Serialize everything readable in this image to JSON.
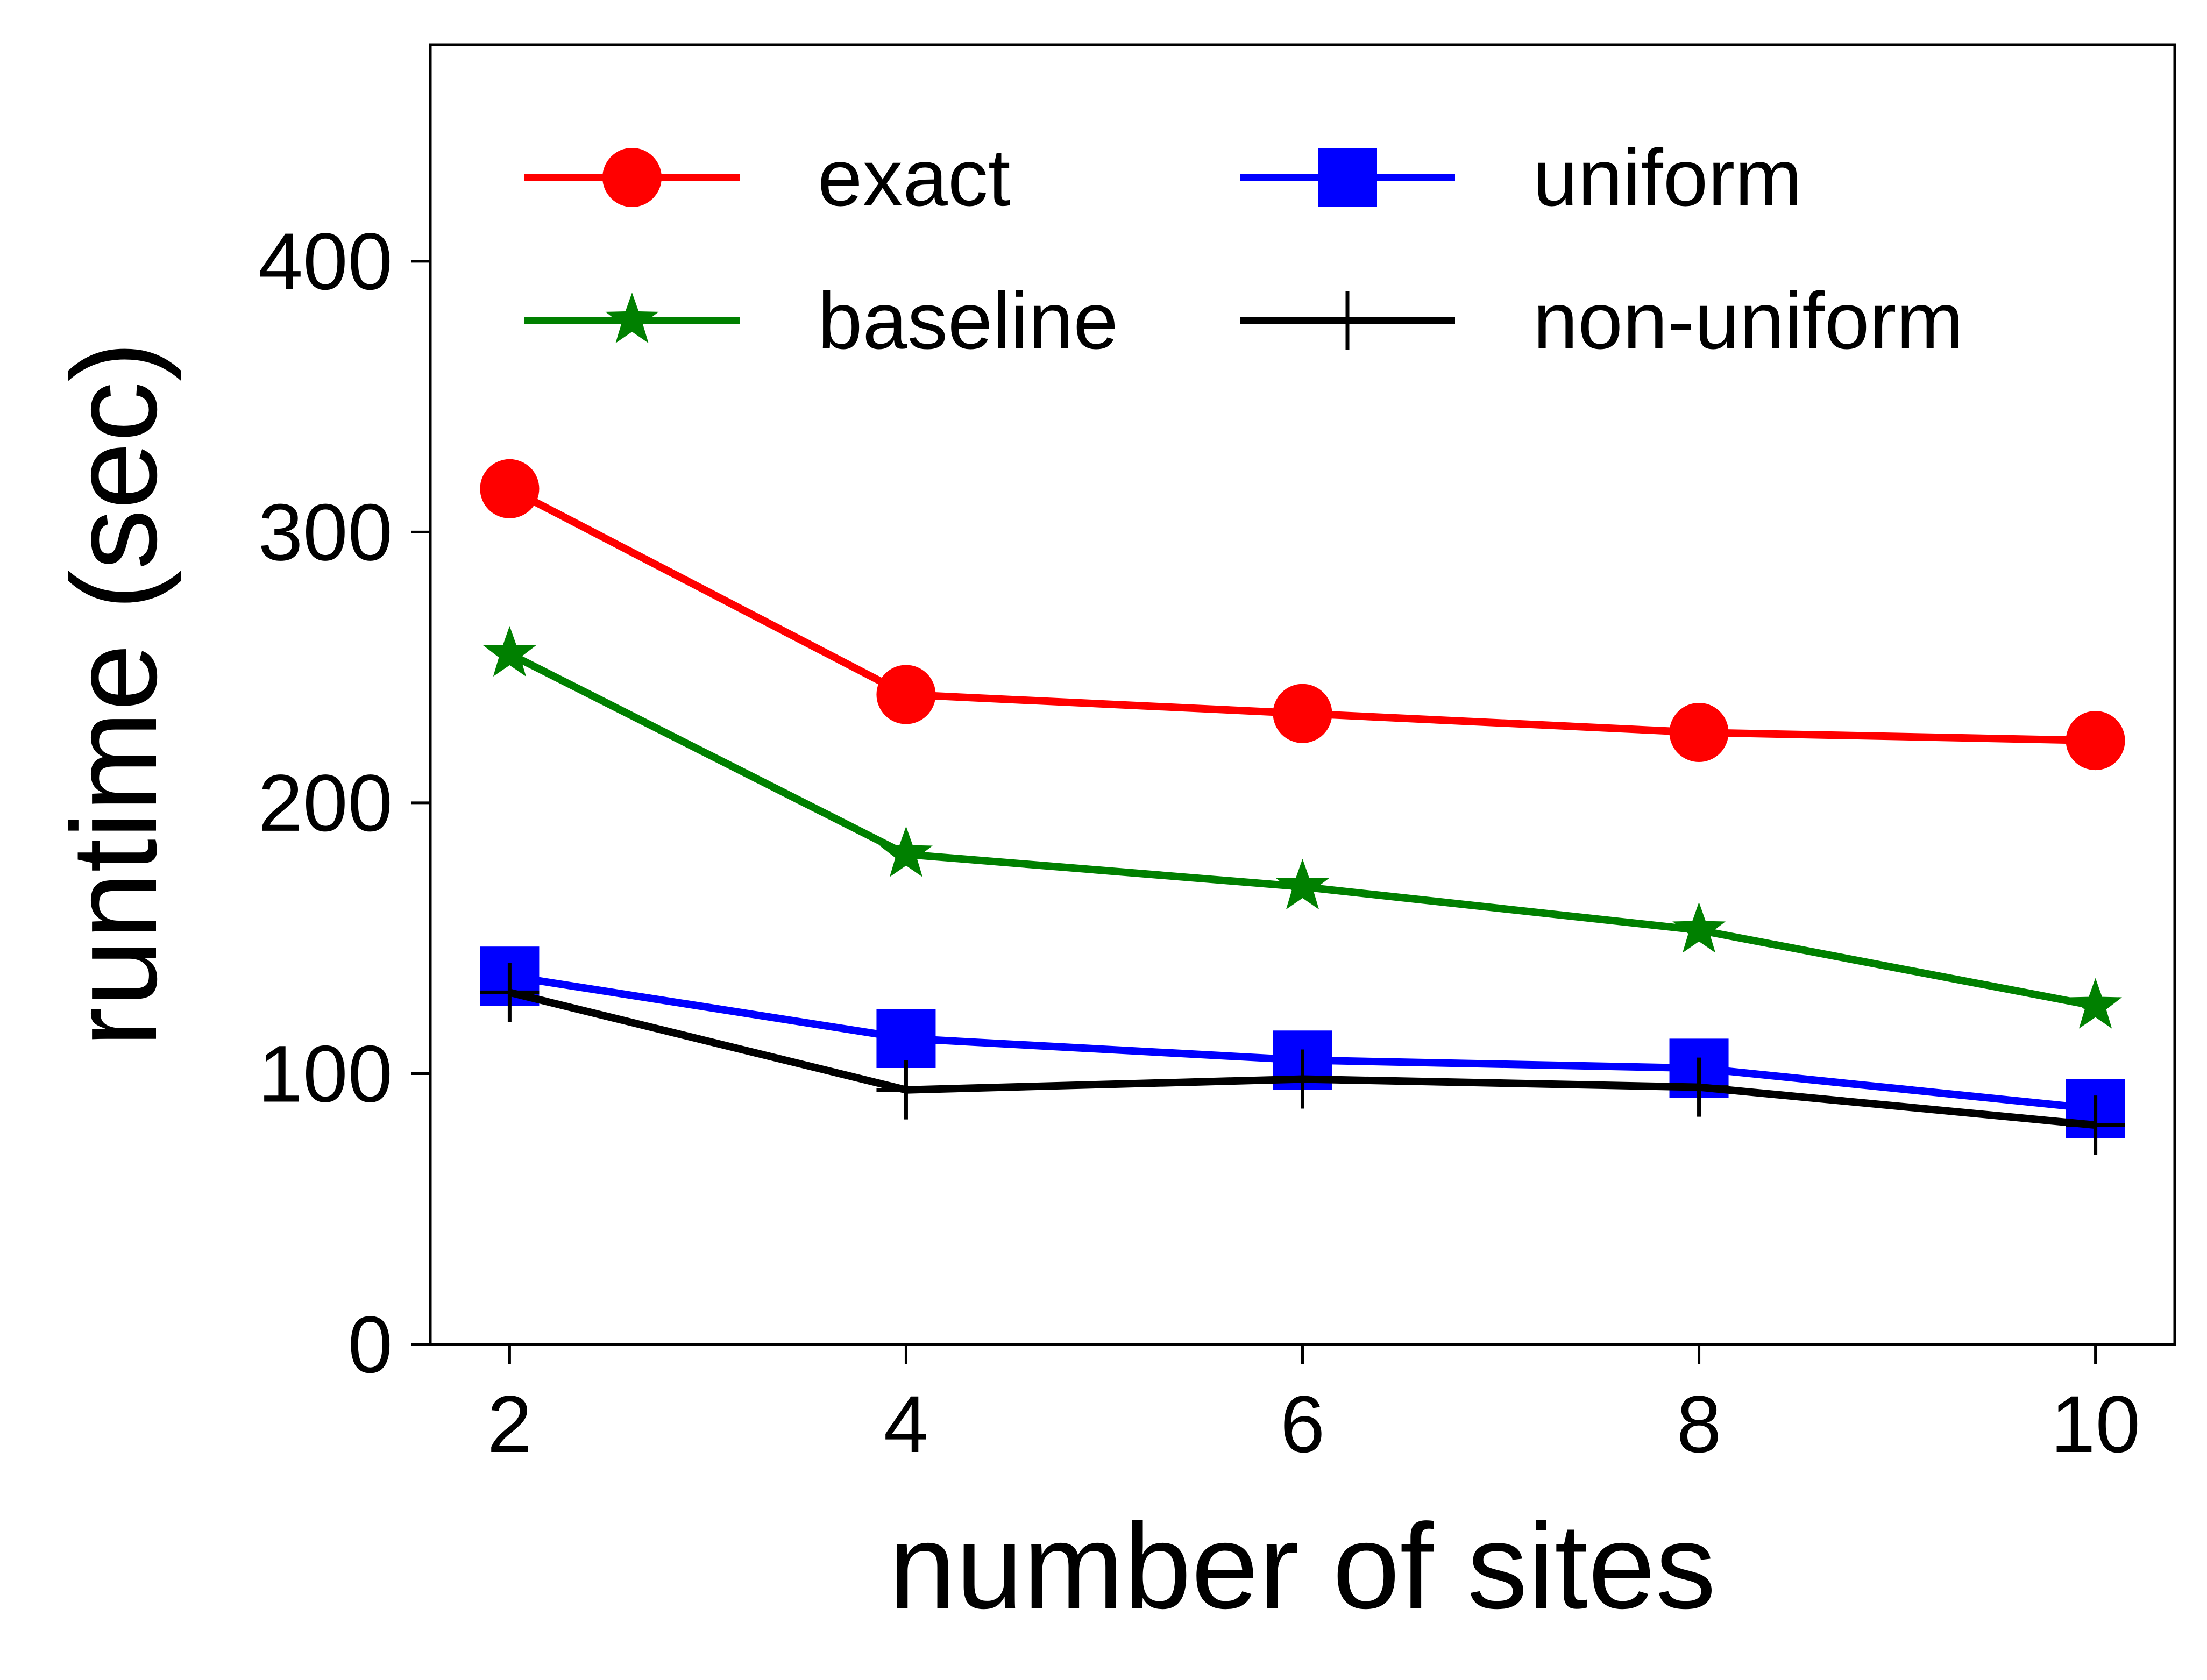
{
  "chart_data": {
    "type": "line",
    "xlabel": "number of sites",
    "ylabel": "runtime (sec)",
    "x": [
      2,
      4,
      6,
      8,
      10
    ],
    "xlim": [
      1.6,
      10.4
    ],
    "ylim": [
      0,
      480
    ],
    "xticks": [
      "2",
      "4",
      "6",
      "8",
      "10"
    ],
    "yticks": [
      "0",
      "100",
      "200",
      "300",
      "400"
    ],
    "grid": false,
    "legend_position": "top",
    "series": [
      {
        "name": "exact",
        "color": "#ff0000",
        "marker": "circle",
        "values": [
          316,
          240,
          233,
          226,
          223
        ]
      },
      {
        "name": "baseline",
        "color": "#008000",
        "marker": "star",
        "values": [
          255,
          181,
          169,
          153,
          125
        ]
      },
      {
        "name": "uniform",
        "color": "#0000ff",
        "marker": "square",
        "values": [
          136,
          113,
          105,
          102,
          87
        ]
      },
      {
        "name": "non-uniform",
        "color": "#000000",
        "marker": "plus",
        "values": [
          130,
          94,
          98,
          95,
          81
        ]
      }
    ]
  }
}
